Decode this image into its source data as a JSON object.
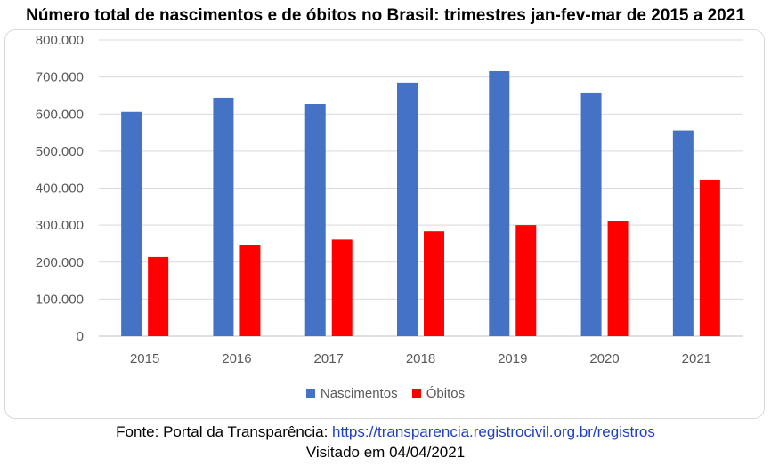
{
  "chart_data": {
    "type": "bar",
    "title": "Número total de nascimentos e de óbitos no Brasil: trimestres jan-fev-mar de 2015 a 2021",
    "categories": [
      "2015",
      "2016",
      "2017",
      "2018",
      "2019",
      "2020",
      "2021"
    ],
    "series": [
      {
        "name": "Nascimentos",
        "color": "#4472c4",
        "values": [
          606000,
          644000,
          627000,
          685000,
          716000,
          656000,
          556000
        ]
      },
      {
        "name": "Óbitos",
        "color": "#ff0000",
        "values": [
          214000,
          246000,
          261000,
          283000,
          300000,
          312000,
          423000
        ]
      }
    ],
    "ylim": [
      0,
      800000
    ],
    "yticks": [
      "0",
      "100.000",
      "200.000",
      "300.000",
      "400.000",
      "500.000",
      "600.000",
      "700.000",
      "800.000"
    ],
    "grid": true,
    "legend_position": "bottom",
    "xlabel": "",
    "ylabel": ""
  },
  "source": {
    "prefix": "Fonte: Portal da Transparência: ",
    "link": "https://transparencia.registrocivil.org.br/registros",
    "visited": "Visitado em 04/04/2021"
  }
}
